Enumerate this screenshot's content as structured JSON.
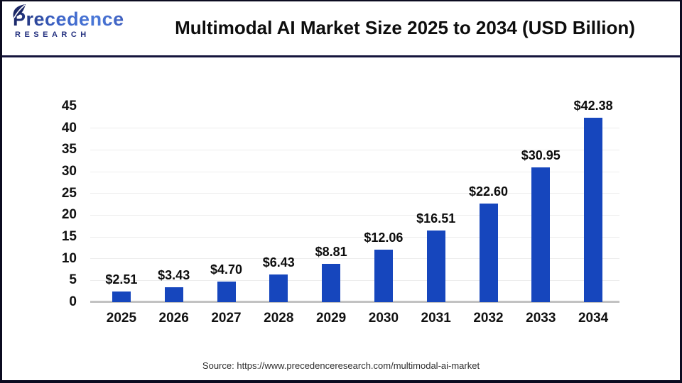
{
  "header": {
    "logo": {
      "name": "Precedence",
      "subname": "RESEARCH"
    },
    "title": "Multimodal AI Market Size 2025 to 2034 (USD Billion)"
  },
  "chart_data": {
    "type": "bar",
    "title": "Multimodal AI Market Size 2025 to 2034 (USD Billion)",
    "categories": [
      "2025",
      "2026",
      "2027",
      "2028",
      "2029",
      "2030",
      "2031",
      "2032",
      "2033",
      "2034"
    ],
    "values": [
      2.51,
      3.43,
      4.7,
      6.43,
      8.81,
      12.06,
      16.51,
      22.6,
      30.95,
      42.38
    ],
    "value_labels": [
      "$2.51",
      "$3.43",
      "$4.70",
      "$6.43",
      "$8.81",
      "$12.06",
      "$16.51",
      "$22.60",
      "$30.95",
      "$42.38"
    ],
    "unit": "USD Billion",
    "xlabel": "",
    "ylabel": "",
    "ylim": [
      0,
      45
    ],
    "yticks": [
      0,
      5,
      10,
      15,
      20,
      25,
      30,
      35,
      40,
      45
    ],
    "grid": "horizontal light-gray lines at each 5-unit tick (none at 45), gray baseline at 0",
    "legend": "none",
    "bar_color": "#1646bd"
  },
  "footer": {
    "source": "Source: https://www.precedenceresearch.com/multimodal-ai-market"
  },
  "colors": {
    "bar": "#1646bd",
    "frame_border": "#0b0b20",
    "header_divider": "#14143c",
    "gridline": "#ededed",
    "baseline": "#c2c2c2",
    "text": "#111111",
    "source_text": "#2e2e2e"
  }
}
